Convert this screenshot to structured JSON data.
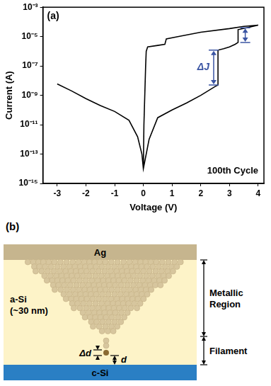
{
  "chart_data": {
    "type": "line",
    "panel_label": "(a)",
    "x_label": "Voltage (V)",
    "y_label": "Current (A)",
    "x": [
      -3,
      -2.5,
      -2,
      -1.5,
      -1,
      -0.5,
      -0.2,
      -0.05,
      0,
      0.2,
      0.5,
      1,
      1.5,
      2,
      2.5,
      2.6,
      2.6,
      2.8,
      3,
      3.2,
      3.3,
      3.3,
      3.6,
      4,
      3.5,
      3,
      2,
      1.2,
      0.8,
      0.75,
      0.5,
      0.15,
      0.1,
      0.08,
      0.05,
      0.02,
      0
    ],
    "values": [
      6e-09,
      2e-09,
      6e-10,
      2e-10,
      8e-11,
      2e-11,
      1.5e-12,
      1e-13,
      1e-14,
      1e-12,
      3e-11,
      1e-10,
      3e-10,
      1e-09,
      4e-09,
      5e-09,
      1.2e-06,
      1.5e-06,
      2e-06,
      3e-06,
      4e-06,
      3e-05,
      4e-05,
      6e-05,
      5e-05,
      3.5e-05,
      2e-05,
      1e-05,
      7e-06,
      3e-06,
      2.5e-06,
      2e-06,
      1e-06,
      1e-07,
      1e-09,
      1e-11,
      1e-14
    ],
    "color": "#000000",
    "log": "y",
    "grid": false,
    "xlim": [
      -3.5,
      4.2
    ],
    "xticks": [
      -3,
      -2,
      -1,
      0,
      1,
      2,
      3,
      4
    ],
    "ylim": [
      1e-15,
      0.001
    ],
    "yticks": [
      {
        "value": 0.001,
        "label": "10⁻³"
      },
      {
        "value": 1e-05,
        "label": "10⁻⁵"
      },
      {
        "value": 1e-07,
        "label": "10⁻⁷"
      },
      {
        "value": 1e-09,
        "label": "10⁻⁹"
      },
      {
        "value": 1e-11,
        "label": "10⁻¹¹"
      },
      {
        "value": 1e-13,
        "label": "10⁻¹³"
      },
      {
        "value": 1e-15,
        "label": "10⁻¹⁵"
      }
    ],
    "annotations": [
      {
        "text": "100th Cycle"
      },
      {
        "text": "ΔJ",
        "x": 2.45,
        "y_from": 5e-09,
        "y_to": 1.2e-06,
        "color": "#3b55a3"
      },
      {
        "x": 3.55,
        "y_from": 4e-06,
        "y_to": 4e-05,
        "color": "#3b55a3"
      }
    ]
  },
  "diagram": {
    "panel_label": "(b)",
    "top_layer": "Ag",
    "middle_layer": [
      "a-Si",
      "(~30 nm)"
    ],
    "bottom_layer": "c-Si",
    "regions": [
      [
        "Metallic",
        "Region"
      ],
      [
        "Filament"
      ]
    ],
    "tip_label": "Δd",
    "gap_label": "d"
  }
}
